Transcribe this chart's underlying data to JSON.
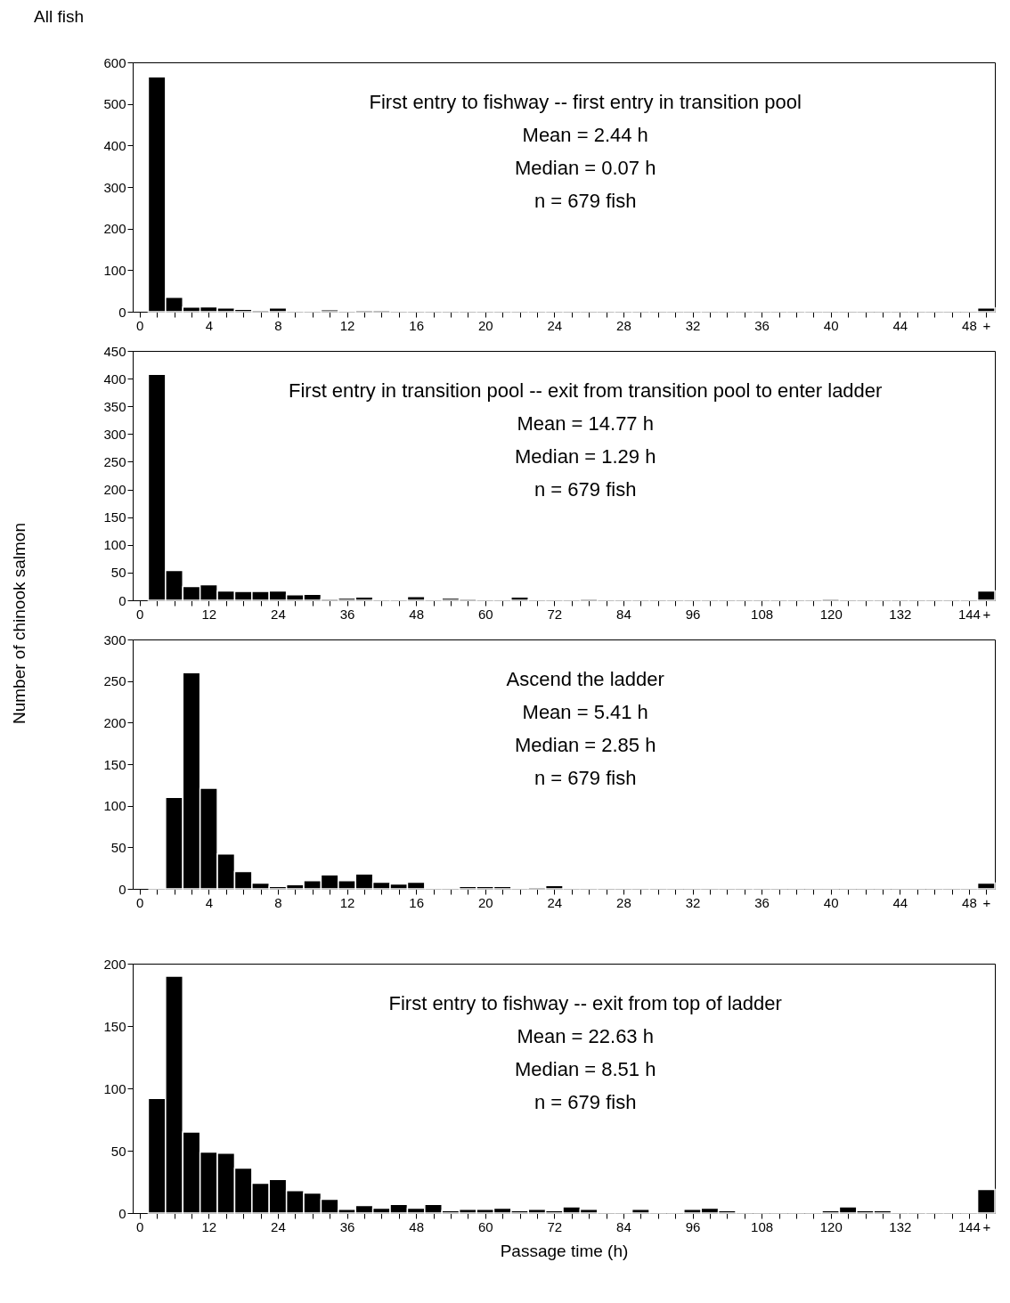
{
  "chart_data": [
    {
      "type": "histogram",
      "title": "All fish",
      "bins": [
        0.5,
        1.5,
        2.5,
        3.5,
        4.5,
        5.5,
        6.5,
        7.5,
        8.5,
        9.5,
        10.5,
        11.5,
        12.5,
        13.5,
        14.5,
        15.5,
        16.5,
        17.5,
        18.5,
        19.5,
        20.5,
        21.5,
        22.5,
        23.5,
        24.5,
        25.5,
        26.5,
        27.5,
        28.5,
        29.5,
        30.5,
        31.5,
        32.5,
        33.5,
        34.5,
        35.5,
        36.5,
        37.5,
        38.5,
        39.5,
        40.5,
        41.5,
        42.5,
        43.5,
        44.5,
        45.5,
        46.5,
        47.5,
        48.5,
        49.5
      ],
      "values": [
        565,
        35,
        11,
        12,
        9,
        6,
        4,
        9,
        1,
        1,
        5,
        1,
        4,
        4,
        1,
        2,
        1,
        2,
        1,
        2,
        1,
        1,
        1,
        1,
        1,
        0,
        1,
        1,
        2,
        1,
        0,
        1,
        1,
        0,
        1,
        1,
        0,
        1,
        1,
        0,
        1,
        0,
        0,
        1,
        0,
        1,
        0,
        0,
        9
      ],
      "xlim": [
        -0.4,
        49.5
      ],
      "xticks": [
        0,
        {
          "value": 1,
          "label": null
        },
        {
          "value": 2,
          "label": null
        },
        {
          "value": 3,
          "label": null
        },
        4,
        {
          "value": 5,
          "label": null
        },
        {
          "value": 6,
          "label": null
        },
        {
          "value": 7,
          "label": null
        },
        8,
        {
          "value": 9,
          "label": null
        },
        {
          "value": 10,
          "label": null
        },
        {
          "value": 11,
          "label": null
        },
        12,
        {
          "value": 13,
          "label": null
        },
        {
          "value": 14,
          "label": null
        },
        {
          "value": 15,
          "label": null
        },
        16,
        {
          "value": 17,
          "label": null
        },
        {
          "value": 18,
          "label": null
        },
        {
          "value": 19,
          "label": null
        },
        20,
        {
          "value": 21,
          "label": null
        },
        {
          "value": 22,
          "label": null
        },
        {
          "value": 23,
          "label": null
        },
        24,
        {
          "value": 25,
          "label": null
        },
        {
          "value": 26,
          "label": null
        },
        {
          "value": 27,
          "label": null
        },
        28,
        {
          "value": 29,
          "label": null
        },
        {
          "value": 30,
          "label": null
        },
        {
          "value": 31,
          "label": null
        },
        32,
        {
          "value": 33,
          "label": null
        },
        {
          "value": 34,
          "label": null
        },
        {
          "value": 35,
          "label": null
        },
        36,
        {
          "value": 37,
          "label": null
        },
        {
          "value": 38,
          "label": null
        },
        {
          "value": 39,
          "label": null
        },
        40,
        {
          "value": 41,
          "label": null
        },
        {
          "value": 42,
          "label": null
        },
        {
          "value": 43,
          "label": null
        },
        44,
        {
          "value": 45,
          "label": null
        },
        {
          "value": 46,
          "label": null
        },
        {
          "value": 47,
          "label": null
        },
        48,
        {
          "value": 49,
          "label": "+"
        }
      ],
      "ylim": [
        0,
        600
      ],
      "yticks": [
        0,
        100,
        200,
        300,
        400,
        500,
        600
      ],
      "annotations": [
        "First entry to fishway -- first entry in transition pool",
        "Mean = 2.44 h",
        "Median = 0.07 h",
        "n = 679 fish"
      ]
    },
    {
      "type": "histogram",
      "ylabel": "Number of chinook salmon",
      "bins": [
        1.5,
        4.5,
        7.5,
        10.5,
        13.5,
        16.5,
        19.5,
        22.5,
        25.5,
        28.5,
        31.5,
        34.5,
        37.5,
        40.5,
        43.5,
        46.5,
        49.5,
        52.5,
        55.5,
        58.5,
        61.5,
        64.5,
        67.5,
        70.5,
        73.5,
        76.5,
        79.5,
        82.5,
        85.5,
        88.5,
        91.5,
        94.5,
        97.5,
        100.5,
        103.5,
        106.5,
        109.5,
        112.5,
        115.5,
        118.5,
        121.5,
        124.5,
        127.5,
        130.5,
        133.5,
        136.5,
        139.5,
        142.5,
        145.5,
        148.5
      ],
      "values": [
        408,
        54,
        25,
        28,
        17,
        16,
        16,
        17,
        10,
        11,
        3,
        4,
        6,
        2,
        2,
        7,
        1,
        4,
        3,
        2,
        1,
        6,
        1,
        2,
        1,
        3,
        1,
        1,
        1,
        1,
        1,
        2,
        1,
        1,
        1,
        1,
        1,
        1,
        1,
        3,
        1,
        1,
        2,
        1,
        1,
        1,
        1,
        1,
        17
      ],
      "xlim": [
        -1.2,
        148.5
      ],
      "xticks": [
        0,
        {
          "value": 3,
          "label": null
        },
        {
          "value": 6,
          "label": null
        },
        {
          "value": 9,
          "label": null
        },
        12,
        {
          "value": 15,
          "label": null
        },
        {
          "value": 18,
          "label": null
        },
        {
          "value": 21,
          "label": null
        },
        24,
        {
          "value": 27,
          "label": null
        },
        {
          "value": 30,
          "label": null
        },
        {
          "value": 33,
          "label": null
        },
        36,
        {
          "value": 39,
          "label": null
        },
        {
          "value": 42,
          "label": null
        },
        {
          "value": 45,
          "label": null
        },
        48,
        {
          "value": 51,
          "label": null
        },
        {
          "value": 54,
          "label": null
        },
        {
          "value": 57,
          "label": null
        },
        60,
        {
          "value": 63,
          "label": null
        },
        {
          "value": 66,
          "label": null
        },
        {
          "value": 69,
          "label": null
        },
        72,
        {
          "value": 75,
          "label": null
        },
        {
          "value": 78,
          "label": null
        },
        {
          "value": 81,
          "label": null
        },
        84,
        {
          "value": 87,
          "label": null
        },
        {
          "value": 90,
          "label": null
        },
        {
          "value": 93,
          "label": null
        },
        96,
        {
          "value": 99,
          "label": null
        },
        {
          "value": 102,
          "label": null
        },
        {
          "value": 105,
          "label": null
        },
        108,
        {
          "value": 111,
          "label": null
        },
        {
          "value": 114,
          "label": null
        },
        {
          "value": 117,
          "label": null
        },
        120,
        {
          "value": 123,
          "label": null
        },
        {
          "value": 126,
          "label": null
        },
        {
          "value": 129,
          "label": null
        },
        132,
        {
          "value": 135,
          "label": null
        },
        {
          "value": 138,
          "label": null
        },
        {
          "value": 141,
          "label": null
        },
        144,
        {
          "value": 147,
          "label": "+"
        }
      ],
      "ylim": [
        0,
        450
      ],
      "yticks": [
        0,
        50,
        100,
        150,
        200,
        250,
        300,
        350,
        400,
        450
      ],
      "annotations": [
        "First entry in transition pool -- exit from transition pool to enter ladder",
        "Mean = 14.77 h",
        "Median = 1.29 h",
        "n = 679 fish"
      ]
    },
    {
      "type": "histogram",
      "bins": [
        0.5,
        1.5,
        2.5,
        3.5,
        4.5,
        5.5,
        6.5,
        7.5,
        8.5,
        9.5,
        10.5,
        11.5,
        12.5,
        13.5,
        14.5,
        15.5,
        16.5,
        17.5,
        18.5,
        19.5,
        20.5,
        21.5,
        22.5,
        23.5,
        24.5,
        25.5,
        26.5,
        27.5,
        28.5,
        29.5,
        30.5,
        31.5,
        32.5,
        33.5,
        34.5,
        35.5,
        36.5,
        37.5,
        38.5,
        39.5,
        40.5,
        41.5,
        42.5,
        43.5,
        44.5,
        45.5,
        46.5,
        47.5,
        48.5,
        49.5
      ],
      "values": [
        0,
        110,
        260,
        121,
        42,
        21,
        7,
        3,
        5,
        10,
        17,
        10,
        18,
        8,
        6,
        8,
        0,
        1,
        3,
        3,
        3,
        0,
        2,
        4,
        0,
        1,
        1,
        0,
        1,
        1,
        0,
        0,
        1,
        0,
        1,
        1,
        0,
        0,
        0,
        0,
        0,
        0,
        0,
        0,
        0,
        0,
        1,
        0,
        7
      ],
      "xlim": [
        -0.4,
        49.5
      ],
      "xticks": [
        0,
        {
          "value": 1,
          "label": null
        },
        {
          "value": 2,
          "label": null
        },
        {
          "value": 3,
          "label": null
        },
        4,
        {
          "value": 5,
          "label": null
        },
        {
          "value": 6,
          "label": null
        },
        {
          "value": 7,
          "label": null
        },
        8,
        {
          "value": 9,
          "label": null
        },
        {
          "value": 10,
          "label": null
        },
        {
          "value": 11,
          "label": null
        },
        12,
        {
          "value": 13,
          "label": null
        },
        {
          "value": 14,
          "label": null
        },
        {
          "value": 15,
          "label": null
        },
        16,
        {
          "value": 17,
          "label": null
        },
        {
          "value": 18,
          "label": null
        },
        {
          "value": 19,
          "label": null
        },
        20,
        {
          "value": 21,
          "label": null
        },
        {
          "value": 22,
          "label": null
        },
        {
          "value": 23,
          "label": null
        },
        24,
        {
          "value": 25,
          "label": null
        },
        {
          "value": 26,
          "label": null
        },
        {
          "value": 27,
          "label": null
        },
        28,
        {
          "value": 29,
          "label": null
        },
        {
          "value": 30,
          "label": null
        },
        {
          "value": 31,
          "label": null
        },
        32,
        {
          "value": 33,
          "label": null
        },
        {
          "value": 34,
          "label": null
        },
        {
          "value": 35,
          "label": null
        },
        36,
        {
          "value": 37,
          "label": null
        },
        {
          "value": 38,
          "label": null
        },
        {
          "value": 39,
          "label": null
        },
        40,
        {
          "value": 41,
          "label": null
        },
        {
          "value": 42,
          "label": null
        },
        {
          "value": 43,
          "label": null
        },
        44,
        {
          "value": 45,
          "label": null
        },
        {
          "value": 46,
          "label": null
        },
        {
          "value": 47,
          "label": null
        },
        48,
        {
          "value": 49,
          "label": "+"
        }
      ],
      "ylim": [
        0,
        300
      ],
      "yticks": [
        0,
        50,
        100,
        150,
        200,
        250,
        300
      ],
      "annotations": [
        "Ascend the ladder",
        "Mean = 5.41 h",
        "Median = 2.85 h",
        "n = 679 fish"
      ]
    },
    {
      "type": "histogram",
      "xlabel": "Passage time (h)",
      "bins": [
        1.5,
        4.5,
        7.5,
        10.5,
        13.5,
        16.5,
        19.5,
        22.5,
        25.5,
        28.5,
        31.5,
        34.5,
        37.5,
        40.5,
        43.5,
        46.5,
        49.5,
        52.5,
        55.5,
        58.5,
        61.5,
        64.5,
        67.5,
        70.5,
        73.5,
        76.5,
        79.5,
        82.5,
        85.5,
        88.5,
        91.5,
        94.5,
        97.5,
        100.5,
        103.5,
        106.5,
        109.5,
        112.5,
        115.5,
        118.5,
        121.5,
        124.5,
        127.5,
        130.5,
        133.5,
        136.5,
        139.5,
        142.5,
        145.5,
        148.5
      ],
      "values": [
        92,
        190,
        65,
        49,
        48,
        36,
        24,
        27,
        18,
        16,
        11,
        3,
        6,
        4,
        7,
        4,
        7,
        2,
        3,
        3,
        4,
        2,
        3,
        2,
        5,
        3,
        1,
        0,
        3,
        0,
        0,
        3,
        4,
        2,
        0,
        0,
        0,
        0,
        0,
        2,
        5,
        2,
        2,
        0,
        1,
        1,
        0,
        0,
        19
      ],
      "xlim": [
        -1.2,
        148.5
      ],
      "xticks": [
        0,
        {
          "value": 3,
          "label": null
        },
        {
          "value": 6,
          "label": null
        },
        {
          "value": 9,
          "label": null
        },
        12,
        {
          "value": 15,
          "label": null
        },
        {
          "value": 18,
          "label": null
        },
        {
          "value": 21,
          "label": null
        },
        24,
        {
          "value": 27,
          "label": null
        },
        {
          "value": 30,
          "label": null
        },
        {
          "value": 33,
          "label": null
        },
        36,
        {
          "value": 39,
          "label": null
        },
        {
          "value": 42,
          "label": null
        },
        {
          "value": 45,
          "label": null
        },
        48,
        {
          "value": 51,
          "label": null
        },
        {
          "value": 54,
          "label": null
        },
        {
          "value": 57,
          "label": null
        },
        60,
        {
          "value": 63,
          "label": null
        },
        {
          "value": 66,
          "label": null
        },
        {
          "value": 69,
          "label": null
        },
        72,
        {
          "value": 75,
          "label": null
        },
        {
          "value": 78,
          "label": null
        },
        {
          "value": 81,
          "label": null
        },
        84,
        {
          "value": 87,
          "label": null
        },
        {
          "value": 90,
          "label": null
        },
        {
          "value": 93,
          "label": null
        },
        96,
        {
          "value": 99,
          "label": null
        },
        {
          "value": 102,
          "label": null
        },
        {
          "value": 105,
          "label": null
        },
        108,
        {
          "value": 111,
          "label": null
        },
        {
          "value": 114,
          "label": null
        },
        {
          "value": 117,
          "label": null
        },
        120,
        {
          "value": 123,
          "label": null
        },
        {
          "value": 126,
          "label": null
        },
        {
          "value": 129,
          "label": null
        },
        132,
        {
          "value": 135,
          "label": null
        },
        {
          "value": 138,
          "label": null
        },
        {
          "value": 141,
          "label": null
        },
        144,
        {
          "value": 147,
          "label": "+"
        }
      ],
      "ylim": [
        0,
        200
      ],
      "yticks": [
        0,
        50,
        100,
        150,
        200
      ],
      "annotations": [
        "First entry to fishway -- exit from top of ladder",
        "Mean = 22.63 h",
        "Median = 8.51 h",
        "n = 679 fish"
      ]
    }
  ]
}
